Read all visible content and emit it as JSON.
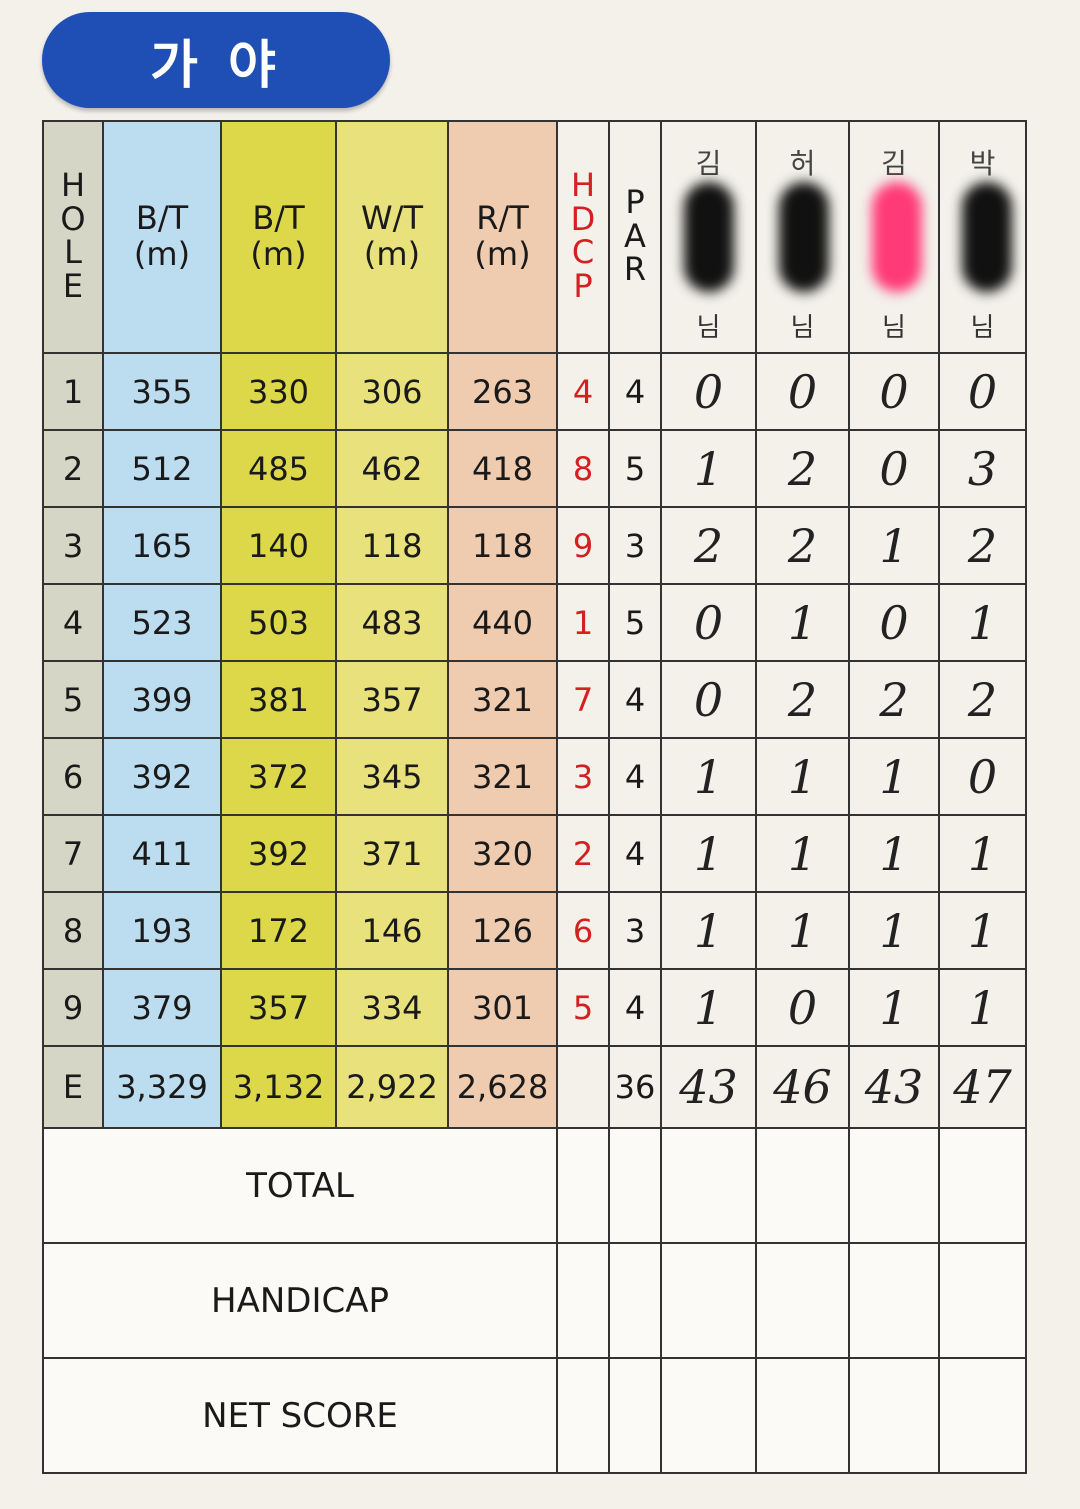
{
  "header": {
    "title": "가 야"
  },
  "table": {
    "columns": [
      "HOLE",
      "B/T (m)",
      "B/T (m)",
      "W/T (m)",
      "R/T (m)",
      "HDCP",
      "PAR"
    ],
    "players": [
      {
        "name": "김",
        "suffix": "님"
      },
      {
        "name": "허",
        "suffix": "님"
      },
      {
        "name": "김",
        "suffix": "님"
      },
      {
        "name": "박",
        "suffix": "님"
      }
    ],
    "rows": [
      [
        1,
        355,
        330,
        306,
        263,
        4,
        4,
        0,
        0,
        0,
        0
      ],
      [
        2,
        512,
        485,
        462,
        418,
        8,
        5,
        1,
        2,
        0,
        3
      ],
      [
        3,
        165,
        140,
        118,
        118,
        9,
        3,
        2,
        2,
        1,
        2
      ],
      [
        4,
        523,
        503,
        483,
        440,
        1,
        5,
        0,
        1,
        0,
        1
      ],
      [
        5,
        399,
        381,
        357,
        321,
        7,
        4,
        0,
        2,
        2,
        2
      ],
      [
        6,
        392,
        372,
        345,
        321,
        3,
        4,
        1,
        1,
        1,
        0
      ],
      [
        7,
        411,
        392,
        371,
        320,
        2,
        4,
        1,
        1,
        1,
        1
      ],
      [
        8,
        193,
        172,
        146,
        126,
        6,
        3,
        1,
        1,
        1,
        1
      ],
      [
        9,
        379,
        357,
        334,
        301,
        5,
        4,
        1,
        0,
        1,
        1
      ]
    ],
    "summary": {
      "label": "E",
      "distances": [
        "3,329",
        "3,132",
        "2,922",
        "2,628"
      ],
      "par": 36,
      "scores": [
        43,
        46,
        43,
        47
      ]
    },
    "footer_rows": [
      "TOTAL",
      "HANDICAP",
      "NET SCORE"
    ]
  }
}
